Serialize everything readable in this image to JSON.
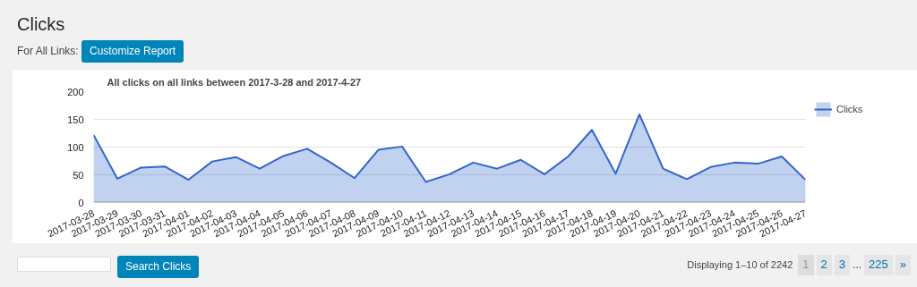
{
  "chart_data": {
    "type": "area",
    "title": "All clicks on all links between 2017-3-28 and 2017-4-27",
    "categories": [
      "2017-03-28",
      "2017-03-29",
      "2017-03-30",
      "2017-03-31",
      "2017-04-01",
      "2017-04-02",
      "2017-04-03",
      "2017-04-04",
      "2017-04-05",
      "2017-04-06",
      "2017-04-07",
      "2017-04-08",
      "2017-04-09",
      "2017-04-10",
      "2017-04-11",
      "2017-04-12",
      "2017-04-13",
      "2017-04-14",
      "2017-04-15",
      "2017-04-16",
      "2017-04-17",
      "2017-04-18",
      "2017-04-19",
      "2017-04-20",
      "2017-04-21",
      "2017-04-22",
      "2017-04-23",
      "2017-04-24",
      "2017-04-25",
      "2017-04-26",
      "2017-04-27"
    ],
    "series": [
      {
        "name": "Clicks",
        "color": "#3366cc",
        "values": [
          122,
          43,
          63,
          65,
          41,
          74,
          82,
          61,
          84,
          97,
          72,
          44,
          95,
          101,
          37,
          51,
          72,
          61,
          77,
          51,
          83,
          131,
          52,
          159,
          61,
          42,
          64,
          72,
          70,
          83,
          41
        ]
      }
    ],
    "ylim": [
      0,
      200
    ],
    "yticks": [
      0,
      50,
      100,
      150,
      200
    ],
    "grid": "y",
    "legend": "top right",
    "annotations": [
      "Clicks",
      "For All Links:",
      "Customize Report",
      "Search Clicks",
      "Displaying 1–10 of 2242",
      "1",
      "2",
      "3",
      "...",
      "225",
      "»"
    ]
  }
}
